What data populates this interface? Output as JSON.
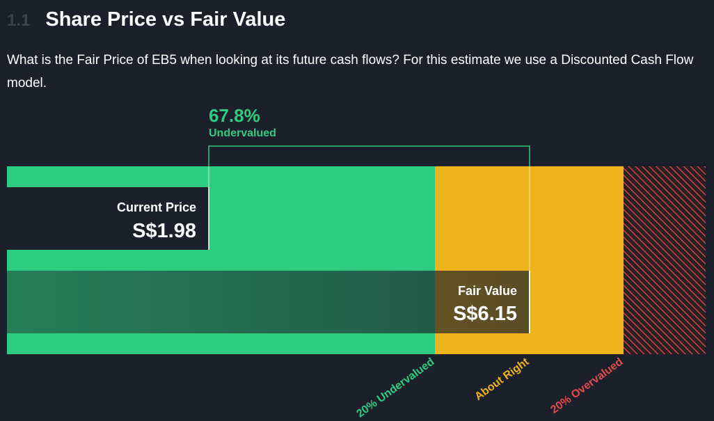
{
  "header": {
    "section_number": "1.1",
    "title": "Share Price vs Fair Value"
  },
  "description": "What is the Fair Price of EB5 when looking at its future cash flows? For this estimate we use a Discounted Cash Flow model.",
  "chart_data": {
    "type": "bar",
    "title": "Share Price vs Fair Value",
    "currency": "S$",
    "current_price": {
      "label": "Current Price",
      "value": 1.98,
      "display": "S$1.98"
    },
    "fair_value": {
      "label": "Fair Value",
      "value": 6.15,
      "display": "S$6.15"
    },
    "valuation": {
      "percent": "67.8%",
      "status": "Undervalued"
    },
    "zones": [
      {
        "name": "20% Undervalued",
        "color": "#2ecc80"
      },
      {
        "name": "About Right",
        "color": "#ecb31a"
      },
      {
        "name": "20% Overvalued",
        "color": "#e24a4a"
      }
    ],
    "colors": {
      "undervalued": "#2ecc80",
      "about_right": "#ecb31a",
      "overvalued": "#e24a4a",
      "background": "#1c202b"
    }
  }
}
